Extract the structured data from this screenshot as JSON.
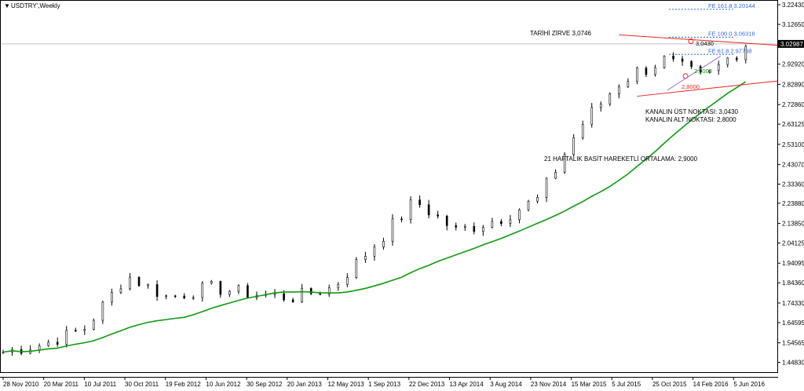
{
  "window": {
    "title": "USDTRY",
    "timeframe_suffix": "',Weekly",
    "symbol_icon": "triangle-down-icon"
  },
  "colors": {
    "candle": "#000000",
    "ma": "#119911",
    "channel": "#ee2222",
    "fib": "#3366ee",
    "current_price_bg": "#000000",
    "current_price_line": "#c0c0c0"
  },
  "chart_data": {
    "type": "candlestick",
    "title": "USDTRY',Weekly",
    "xlabel": "",
    "ylabel": "",
    "ylim": [
      1.4,
      3.24
    ],
    "y_ticks": [
      "3.22430",
      "3.12650",
      "3.02987",
      "2.92920",
      "2.82890",
      "2.72860",
      "2.63125",
      "2.53100",
      "2.43070",
      "2.33360",
      "2.23880",
      "2.13850",
      "2.04125",
      "1.94095",
      "1.84360",
      "1.74330",
      "1.64595",
      "1.54565",
      "1.44830"
    ],
    "x_ticks": [
      "28 Nov 2010",
      "20 Mar 2011",
      "10 Jul 2011",
      "30 Oct 2011",
      "19 Feb 2012",
      "10 Jun 2012",
      "30 Sep 2012",
      "20 Jan 2013",
      "12 May 2013",
      "1 Sep 2013",
      "22 Dec 2013",
      "13 Apr 2014",
      "3 Aug 2014",
      "23 Nov 2014",
      "15 Mar 2015",
      "5 Jul 2015",
      "25 Oct 2015",
      "14 Feb 2016",
      "5 Jun 2016"
    ],
    "key_closes": [
      {
        "x": "28 Nov 2010",
        "y": 1.5
      },
      {
        "x": "20 Mar 2011",
        "y": 1.54
      },
      {
        "x": "10 Jul 2011",
        "y": 1.62
      },
      {
        "x": "30 Oct 2011",
        "y": 1.88
      },
      {
        "x": "19 Feb 2012",
        "y": 1.77
      },
      {
        "x": "10 Jun 2012",
        "y": 1.82
      },
      {
        "x": "30 Sep 2012",
        "y": 1.79
      },
      {
        "x": "20 Jan 2013",
        "y": 1.77
      },
      {
        "x": "12 May 2013",
        "y": 1.82
      },
      {
        "x": "1 Sep 2013",
        "y": 2.03
      },
      {
        "x": "22 Dec 2013",
        "y": 2.25
      },
      {
        "x": "13 Apr 2014",
        "y": 2.1
      },
      {
        "x": "3 Aug 2014",
        "y": 2.16
      },
      {
        "x": "23 Nov 2014",
        "y": 2.26
      },
      {
        "x": "15 Mar 2015",
        "y": 2.62
      },
      {
        "x": "5 Jul 2015",
        "y": 2.85
      },
      {
        "x": "25 Oct 2015",
        "y": 2.95
      },
      {
        "x": "14 Feb 2016",
        "y": 2.85
      },
      {
        "x": "5 Jun 2016",
        "y": 3.03
      }
    ],
    "current_price": 3.02987,
    "moving_average": {
      "label": "21 HAFTALIK BASİT HAREKETLİ ORTALAMA: 2,9000",
      "value_label": "2,9000",
      "value": 2.9
    },
    "channel": {
      "upper_label": "KANALIN ÜST NOKTASI: 3,0430",
      "lower_label": "KANALIN ALT NOKTASI: 2,8000",
      "upper_value_label": "3,0430",
      "lower_value_label": "2,8000",
      "upper": 3.043,
      "lower": 2.8
    },
    "peak": {
      "label": "TARİHİ ZİRVE 3,0746",
      "value": 3.0746
    },
    "fibonacci": [
      {
        "label": "FE 161.8 3.20144",
        "value": 3.20144
      },
      {
        "label": "FE 100.0 3.06316",
        "value": 3.06316
      },
      {
        "label": "FE 61.8 2.97768",
        "value": 2.97768
      }
    ]
  }
}
